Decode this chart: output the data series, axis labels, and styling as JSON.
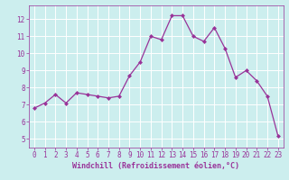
{
  "x": [
    0,
    1,
    2,
    3,
    4,
    5,
    6,
    7,
    8,
    9,
    10,
    11,
    12,
    13,
    14,
    15,
    16,
    17,
    18,
    19,
    20,
    21,
    22,
    23
  ],
  "y": [
    6.8,
    7.1,
    7.6,
    7.1,
    7.7,
    7.6,
    7.5,
    7.4,
    7.5,
    8.7,
    9.5,
    11.0,
    10.8,
    12.2,
    12.2,
    11.0,
    10.7,
    11.5,
    10.3,
    8.6,
    9.0,
    8.4,
    7.5,
    5.2
  ],
  "line_color": "#993399",
  "marker": "D",
  "marker_size": 2.0,
  "bg_color": "#cceeee",
  "grid_color": "#aadddd",
  "xlabel": "Windchill (Refroidissement éolien,°C)",
  "xlabel_color": "#993399",
  "tick_color": "#993399",
  "ylim": [
    4.5,
    12.8
  ],
  "xlim": [
    -0.5,
    23.5
  ],
  "yticks": [
    5,
    6,
    7,
    8,
    9,
    10,
    11,
    12
  ],
  "xticks": [
    0,
    1,
    2,
    3,
    4,
    5,
    6,
    7,
    8,
    9,
    10,
    11,
    12,
    13,
    14,
    15,
    16,
    17,
    18,
    19,
    20,
    21,
    22,
    23
  ],
  "label_fontsize": 6.0,
  "tick_fontsize": 5.5,
  "linewidth": 0.9
}
